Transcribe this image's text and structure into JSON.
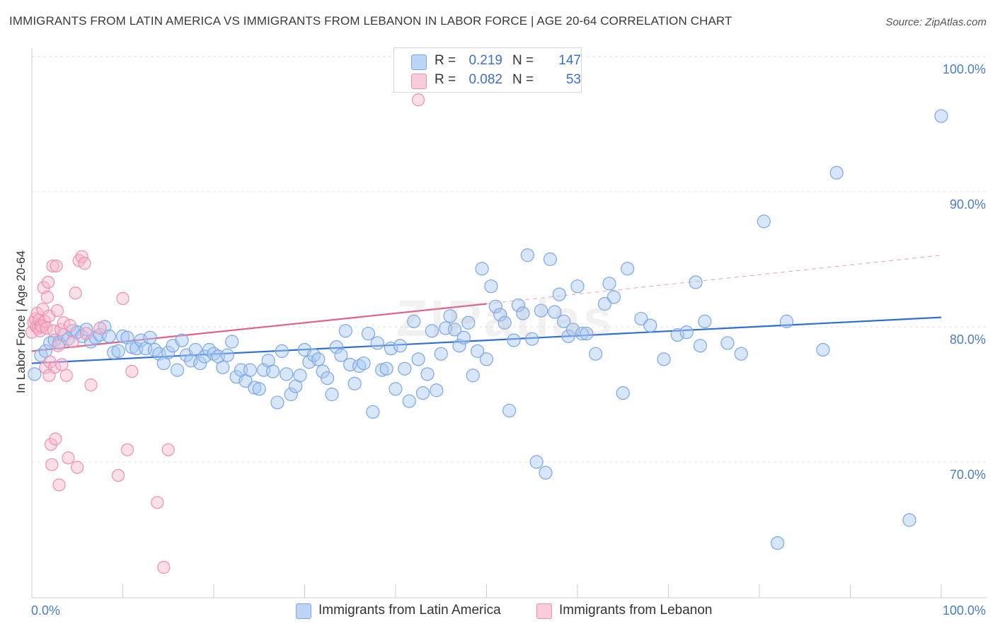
{
  "header": {
    "title": "IMMIGRANTS FROM LATIN AMERICA VS IMMIGRANTS FROM LEBANON IN LABOR FORCE | AGE 20-64 CORRELATION CHART",
    "source": "Source: ZipAtlas.com"
  },
  "legend": {
    "rows": [
      {
        "r_label": "R =",
        "r_value": "0.219",
        "n_label": "N =",
        "n_value": "147",
        "color": "#a9c8f3"
      },
      {
        "r_label": "R =",
        "r_value": "0.082",
        "n_label": "N =",
        "n_value": "53",
        "color": "#f5b8cb"
      }
    ]
  },
  "bottom_legend": {
    "series1": "Immigrants from Latin America",
    "series2": "Immigrants from Lebanon"
  },
  "watermark": "ZIPatlas",
  "chart_data": {
    "type": "scatter",
    "title": "IMMIGRANTS FROM LATIN AMERICA VS IMMIGRANTS FROM LEBANON IN LABOR FORCE | AGE 20-64 CORRELATION CHART",
    "xlabel": "",
    "ylabel": "In Labor Force | Age 20-64",
    "xlim": [
      0,
      100
    ],
    "ylim": [
      60,
      100
    ],
    "x_tick_labels": [
      "0.0%",
      "100.0%"
    ],
    "y_ticks": [
      70,
      80,
      90,
      100
    ],
    "y_tick_labels": [
      "70.0%",
      "80.0%",
      "90.0%",
      "100.0%"
    ],
    "grid": true,
    "colors": {
      "latin_america": "#7aa7e6",
      "lebanon": "#f08fae",
      "trend_blue": "#2f6fd1",
      "trend_pink": "#e0608c"
    },
    "series": [
      {
        "name": "Immigrants from Latin America",
        "r": 0.219,
        "n": 147,
        "trend": {
          "x": [
            0,
            100
          ],
          "y": [
            77.3,
            80.7
          ]
        },
        "points": [
          [
            0.3,
            76.5
          ],
          [
            1.0,
            77.9
          ],
          [
            1.5,
            78.2
          ],
          [
            2.0,
            78.8
          ],
          [
            2.5,
            79.0
          ],
          [
            3.0,
            78.8
          ],
          [
            3.5,
            79.4
          ],
          [
            4.0,
            79.1
          ],
          [
            4.5,
            79.7
          ],
          [
            5.0,
            79.6
          ],
          [
            5.5,
            79.3
          ],
          [
            6.0,
            79.8
          ],
          [
            6.5,
            78.9
          ],
          [
            7.0,
            79.2
          ],
          [
            7.5,
            79.4
          ],
          [
            8.0,
            80.0
          ],
          [
            8.5,
            79.3
          ],
          [
            9.0,
            78.1
          ],
          [
            9.5,
            78.2
          ],
          [
            10.0,
            79.3
          ],
          [
            10.5,
            79.2
          ],
          [
            11.0,
            78.5
          ],
          [
            11.5,
            78.4
          ],
          [
            12.0,
            79.0
          ],
          [
            12.5,
            78.4
          ],
          [
            13.0,
            79.2
          ],
          [
            13.5,
            78.3
          ],
          [
            14.0,
            78.0
          ],
          [
            14.5,
            77.3
          ],
          [
            15.0,
            78.1
          ],
          [
            15.5,
            78.6
          ],
          [
            16.0,
            76.8
          ],
          [
            16.5,
            79.0
          ],
          [
            17.0,
            77.9
          ],
          [
            17.5,
            77.5
          ],
          [
            18.0,
            78.3
          ],
          [
            18.5,
            77.3
          ],
          [
            19.0,
            77.8
          ],
          [
            19.5,
            78.3
          ],
          [
            20.0,
            78.0
          ],
          [
            20.5,
            77.8
          ],
          [
            21.0,
            77.0
          ],
          [
            21.5,
            77.9
          ],
          [
            22.0,
            78.9
          ],
          [
            22.5,
            76.3
          ],
          [
            23.0,
            76.8
          ],
          [
            23.5,
            76.0
          ],
          [
            24.0,
            76.8
          ],
          [
            24.5,
            75.5
          ],
          [
            25.0,
            75.4
          ],
          [
            25.5,
            76.8
          ],
          [
            26.0,
            77.5
          ],
          [
            26.5,
            76.7
          ],
          [
            27.0,
            74.4
          ],
          [
            27.5,
            78.2
          ],
          [
            28.0,
            76.5
          ],
          [
            28.5,
            75.0
          ],
          [
            29.0,
            75.6
          ],
          [
            29.5,
            76.4
          ],
          [
            30.0,
            78.3
          ],
          [
            30.5,
            77.4
          ],
          [
            31.0,
            77.9
          ],
          [
            31.5,
            77.6
          ],
          [
            32.0,
            76.7
          ],
          [
            32.5,
            76.2
          ],
          [
            33.0,
            75.0
          ],
          [
            33.5,
            78.5
          ],
          [
            34.0,
            77.9
          ],
          [
            34.5,
            79.7
          ],
          [
            35.0,
            77.2
          ],
          [
            35.5,
            75.8
          ],
          [
            36.0,
            77.1
          ],
          [
            36.5,
            77.3
          ],
          [
            37.0,
            79.5
          ],
          [
            37.5,
            73.7
          ],
          [
            38.0,
            78.8
          ],
          [
            38.5,
            76.8
          ],
          [
            39.0,
            76.9
          ],
          [
            39.5,
            78.4
          ],
          [
            40.0,
            75.4
          ],
          [
            40.5,
            78.6
          ],
          [
            41.0,
            76.9
          ],
          [
            41.5,
            74.5
          ],
          [
            42.0,
            80.4
          ],
          [
            42.5,
            77.6
          ],
          [
            43.0,
            75.1
          ],
          [
            43.5,
            76.5
          ],
          [
            44.0,
            79.7
          ],
          [
            44.5,
            75.3
          ],
          [
            45.0,
            78.0
          ],
          [
            45.5,
            79.9
          ],
          [
            46.0,
            80.8
          ],
          [
            46.5,
            79.8
          ],
          [
            47.0,
            78.6
          ],
          [
            47.5,
            79.2
          ],
          [
            48.0,
            80.3
          ],
          [
            48.5,
            76.4
          ],
          [
            49.0,
            78.2
          ],
          [
            49.5,
            84.3
          ],
          [
            50.0,
            77.6
          ],
          [
            50.5,
            83.0
          ],
          [
            51.0,
            81.5
          ],
          [
            51.5,
            80.9
          ],
          [
            52.0,
            80.3
          ],
          [
            52.5,
            73.8
          ],
          [
            53.0,
            79.0
          ],
          [
            53.5,
            81.6
          ],
          [
            54.0,
            81.0
          ],
          [
            54.5,
            85.3
          ],
          [
            55.0,
            79.1
          ],
          [
            55.5,
            70.0
          ],
          [
            56.0,
            81.2
          ],
          [
            56.5,
            69.2
          ],
          [
            57.0,
            85.0
          ],
          [
            57.5,
            81.1
          ],
          [
            58.0,
            82.4
          ],
          [
            58.5,
            80.4
          ],
          [
            59.0,
            79.3
          ],
          [
            59.5,
            79.8
          ],
          [
            60.0,
            83.0
          ],
          [
            60.5,
            79.5
          ],
          [
            61.0,
            79.5
          ],
          [
            62.0,
            78.0
          ],
          [
            63.0,
            81.7
          ],
          [
            63.5,
            83.2
          ],
          [
            64.0,
            82.2
          ],
          [
            65.0,
            75.1
          ],
          [
            65.5,
            84.3
          ],
          [
            67.0,
            80.6
          ],
          [
            68.0,
            80.1
          ],
          [
            69.5,
            77.6
          ],
          [
            71.0,
            79.4
          ],
          [
            72.0,
            79.6
          ],
          [
            73.0,
            83.3
          ],
          [
            73.5,
            78.6
          ],
          [
            74.0,
            80.4
          ],
          [
            76.5,
            78.8
          ],
          [
            78.0,
            78.0
          ],
          [
            80.5,
            87.8
          ],
          [
            82.0,
            64.0
          ],
          [
            83.0,
            80.4
          ],
          [
            87.0,
            78.3
          ],
          [
            88.5,
            91.4
          ],
          [
            96.5,
            65.7
          ],
          [
            100.0,
            95.6
          ]
        ]
      },
      {
        "name": "Immigrants from Lebanon",
        "r": 0.082,
        "n": 53,
        "trend": {
          "x": [
            0,
            50,
            100
          ],
          "y": [
            78.2,
            81.7,
            85.3
          ]
        },
        "points": [
          [
            0.0,
            79.6
          ],
          [
            0.2,
            80.3
          ],
          [
            0.4,
            80.6
          ],
          [
            0.5,
            80.0
          ],
          [
            0.6,
            81.0
          ],
          [
            0.7,
            79.9
          ],
          [
            0.8,
            80.5
          ],
          [
            0.9,
            79.7
          ],
          [
            1.0,
            80.1
          ],
          [
            1.1,
            80.0
          ],
          [
            1.2,
            81.3
          ],
          [
            1.3,
            82.9
          ],
          [
            1.4,
            80.4
          ],
          [
            1.5,
            77.0
          ],
          [
            1.6,
            79.9
          ],
          [
            1.7,
            82.2
          ],
          [
            1.8,
            83.3
          ],
          [
            1.9,
            80.8
          ],
          [
            2.0,
            77.4
          ],
          [
            2.1,
            71.3
          ],
          [
            2.2,
            69.8
          ],
          [
            2.3,
            84.5
          ],
          [
            2.4,
            79.7
          ],
          [
            2.5,
            77.0
          ],
          [
            2.6,
            71.7
          ],
          [
            2.7,
            84.5
          ],
          [
            2.8,
            81.2
          ],
          [
            2.9,
            78.6
          ],
          [
            3.0,
            68.3
          ],
          [
            3.2,
            79.8
          ],
          [
            3.5,
            80.3
          ],
          [
            3.8,
            76.4
          ],
          [
            4.0,
            70.3
          ],
          [
            4.2,
            80.1
          ],
          [
            4.5,
            78.9
          ],
          [
            4.8,
            82.5
          ],
          [
            5.0,
            69.6
          ],
          [
            5.2,
            84.9
          ],
          [
            5.5,
            85.2
          ],
          [
            5.8,
            84.7
          ],
          [
            6.0,
            79.5
          ],
          [
            6.5,
            75.7
          ],
          [
            7.5,
            79.9
          ],
          [
            9.5,
            69.0
          ],
          [
            10.0,
            82.1
          ],
          [
            10.5,
            70.9
          ],
          [
            11.0,
            76.7
          ],
          [
            13.8,
            67.0
          ],
          [
            14.5,
            62.2
          ],
          [
            15.0,
            70.9
          ],
          [
            42.5,
            96.8
          ],
          [
            3.3,
            77.2
          ],
          [
            1.9,
            76.4
          ]
        ]
      }
    ]
  }
}
